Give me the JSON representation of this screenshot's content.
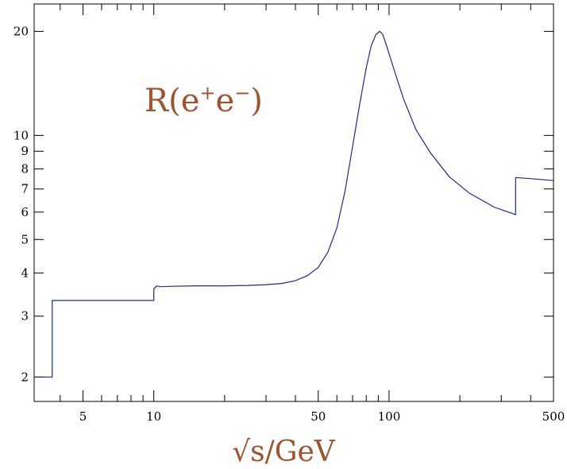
{
  "chart_data": {
    "type": "line",
    "xscale": "log",
    "yscale": "log",
    "xlim": [
      3.1,
      500
    ],
    "ylim": [
      1.7,
      24
    ],
    "grid": false,
    "legend": "none",
    "xlabel": "√s/GeV",
    "annotation": {
      "base": "R(e",
      "sup1": "+",
      "mid": "e",
      "sup2": "−",
      "close": ")"
    },
    "xticks": {
      "major": [
        5,
        10,
        50,
        100,
        500
      ],
      "major_labels": [
        "5",
        "10",
        "50",
        "100",
        "500"
      ],
      "minor": [
        4,
        6,
        7,
        8,
        9,
        20,
        30,
        40,
        60,
        70,
        80,
        90,
        200,
        300,
        400
      ]
    },
    "yticks": {
      "values": [
        2,
        3,
        4,
        5,
        6,
        7,
        8,
        9,
        10,
        20
      ],
      "labels": [
        "2",
        "3",
        "4",
        "5",
        "6",
        "7",
        "8",
        "9",
        "10",
        "20"
      ]
    },
    "colors": {
      "line": "#1f2a8c",
      "annotation": "#a0522d",
      "axes": "#000000"
    },
    "series": [
      {
        "x": [
          3.1,
          3.7,
          3.7,
          10.0,
          10.0,
          10.3,
          10.6,
          12,
          15,
          20,
          25,
          30,
          35,
          40,
          45,
          50,
          55,
          60,
          65,
          70,
          75,
          80,
          84,
          88,
          91.2,
          94,
          98,
          105,
          115,
          130,
          150,
          180,
          220,
          280,
          345,
          345,
          400,
          500
        ],
        "y": [
          2.0,
          2.0,
          3.33,
          3.33,
          3.6,
          3.67,
          3.65,
          3.66,
          3.67,
          3.67,
          3.68,
          3.7,
          3.73,
          3.8,
          3.93,
          4.15,
          4.6,
          5.4,
          6.9,
          9.3,
          12.3,
          15.7,
          18.2,
          19.6,
          20.0,
          19.6,
          18.0,
          15.5,
          12.8,
          10.4,
          8.9,
          7.6,
          6.8,
          6.2,
          5.9,
          7.55,
          7.5,
          7.4
        ]
      }
    ]
  }
}
